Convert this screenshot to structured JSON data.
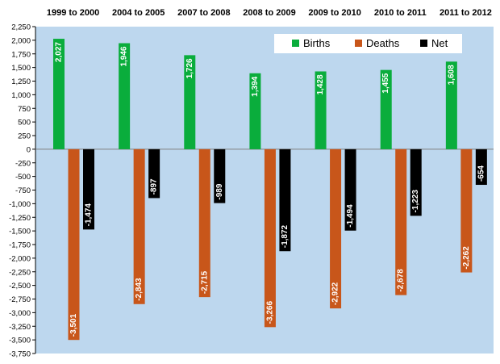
{
  "chart_data": {
    "type": "bar",
    "categories": [
      "1999 to 2000",
      "2004 to 2005",
      "2007 to 2008",
      "2008 to 2009",
      "2009 to 2010",
      "2010 to 2011",
      "2011 to 2012"
    ],
    "series": [
      {
        "name": "Births",
        "color": "#0aad3c",
        "values": [
          2027,
          1946,
          1726,
          1394,
          1428,
          1455,
          1608
        ],
        "labels": [
          "2,027",
          "1,946",
          "1,726",
          "1,394",
          "1,428",
          "1,455",
          "1,608"
        ]
      },
      {
        "name": "Deaths",
        "color": "#c8561a",
        "values": [
          -3501,
          -2843,
          -2715,
          -3266,
          -2922,
          -2678,
          -2262
        ],
        "labels": [
          "-3,501",
          "-2,843",
          "-2,715",
          "-3,266",
          "-2,922",
          "-2,678",
          "-2,262"
        ]
      },
      {
        "name": "Net",
        "color": "#000000",
        "values": [
          -1474,
          -897,
          -989,
          -1872,
          -1494,
          -1223,
          -654
        ],
        "labels": [
          "-1,474",
          "-897",
          "-989",
          "-1,872",
          "-1,494",
          "-1,223",
          "-654"
        ]
      }
    ],
    "ylim": [
      -3750,
      2250
    ],
    "yticks": [
      2250,
      2000,
      1750,
      1500,
      1250,
      1000,
      750,
      500,
      250,
      0,
      -250,
      -500,
      -750,
      -1000,
      -1250,
      -1500,
      -1750,
      -2000,
      -2250,
      -2500,
      -2750,
      -3000,
      -3250,
      -3500,
      -3750
    ],
    "ytick_labels": [
      "2,250",
      "2,000",
      "1,750",
      "1,500",
      "1,250",
      "1,000",
      "750",
      "500",
      "250",
      "0",
      "-250",
      "-500",
      "-750",
      "-1,000",
      "-1,250",
      "-1,500",
      "-1,750",
      "-2,000",
      "-2,250",
      "-2,500",
      "-2,750",
      "-3,000",
      "-3,250",
      "-3,500",
      "-3,750"
    ],
    "category_labels_position": "top",
    "legend_position": "top-right",
    "grid": false,
    "plot_background": "#bdd7ee",
    "title": "",
    "xlabel": "",
    "ylabel": ""
  }
}
